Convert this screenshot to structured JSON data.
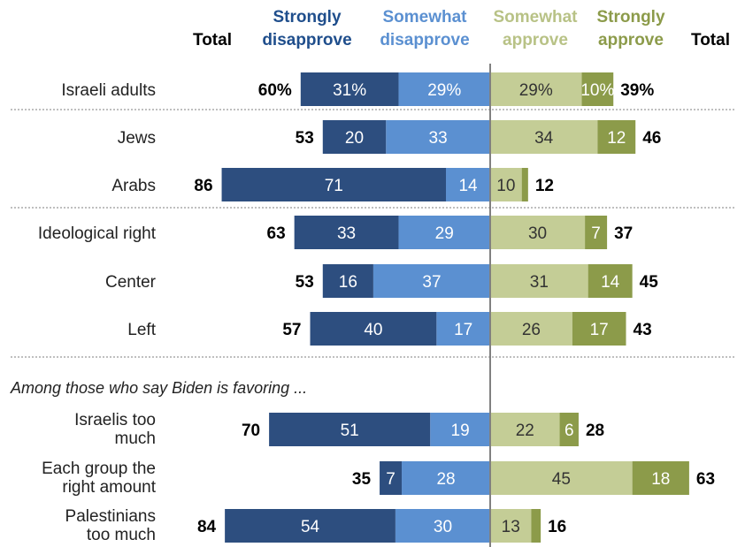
{
  "chart_data": {
    "type": "bar",
    "orientation": "horizontal-diverging",
    "headers": {
      "total_left": "Total",
      "strongly_disapprove": [
        "Strongly",
        "disapprove"
      ],
      "somewhat_disapprove": [
        "Somewhat",
        "disapprove"
      ],
      "somewhat_approve": [
        "Somewhat",
        "approve"
      ],
      "strongly_approve": [
        "Strongly",
        "approve"
      ],
      "total_right": "Total"
    },
    "colors": {
      "strongly_disapprove": "#2d4e7f",
      "somewhat_disapprove": "#5b90d1",
      "somewhat_approve": "#c4cd96",
      "strongly_approve": "#8c9b4a",
      "hdr_strongly_disapprove": "#1f4e8c",
      "hdr_somewhat_disapprove": "#5b90d1",
      "hdr_somewhat_approve": "#b8c286",
      "hdr_strongly_approve": "#8c9b4a"
    },
    "section_label": "Among those who say Biden is favoring ...",
    "rows": [
      {
        "label": [
          "Israeli adults"
        ],
        "strongly_disapprove": 31,
        "somewhat_disapprove": 29,
        "somewhat_approve": 29,
        "strongly_approve": 10,
        "total_disapprove": 60,
        "total_approve": 39,
        "labels": {
          "strongly_disapprove": "31%",
          "somewhat_disapprove": "29%",
          "somewhat_approve": "29%",
          "strongly_approve": "10%",
          "total_disapprove": "60%",
          "total_approve": "39%"
        }
      },
      {
        "label": [
          "Jews"
        ],
        "strongly_disapprove": 20,
        "somewhat_disapprove": 33,
        "somewhat_approve": 34,
        "strongly_approve": 12,
        "total_disapprove": 53,
        "total_approve": 46,
        "labels": {
          "strongly_disapprove": "20",
          "somewhat_disapprove": "33",
          "somewhat_approve": "34",
          "strongly_approve": "12",
          "total_disapprove": "53",
          "total_approve": "46"
        }
      },
      {
        "label": [
          "Arabs"
        ],
        "strongly_disapprove": 71,
        "somewhat_disapprove": 14,
        "somewhat_approve": 10,
        "strongly_approve": 2,
        "total_disapprove": 86,
        "total_approve": 12,
        "labels": {
          "strongly_disapprove": "71",
          "somewhat_disapprove": "14",
          "somewhat_approve": "10",
          "strongly_approve": "",
          "total_disapprove": "86",
          "total_approve": "12"
        }
      },
      {
        "label": [
          "Ideological right"
        ],
        "strongly_disapprove": 33,
        "somewhat_disapprove": 29,
        "somewhat_approve": 30,
        "strongly_approve": 7,
        "total_disapprove": 63,
        "total_approve": 37,
        "labels": {
          "strongly_disapprove": "33",
          "somewhat_disapprove": "29",
          "somewhat_approve": "30",
          "strongly_approve": "7",
          "total_disapprove": "63",
          "total_approve": "37"
        }
      },
      {
        "label": [
          "Center"
        ],
        "strongly_disapprove": 16,
        "somewhat_disapprove": 37,
        "somewhat_approve": 31,
        "strongly_approve": 14,
        "total_disapprove": 53,
        "total_approve": 45,
        "labels": {
          "strongly_disapprove": "16",
          "somewhat_disapprove": "37",
          "somewhat_approve": "31",
          "strongly_approve": "14",
          "total_disapprove": "53",
          "total_approve": "45"
        }
      },
      {
        "label": [
          "Left"
        ],
        "strongly_disapprove": 40,
        "somewhat_disapprove": 17,
        "somewhat_approve": 26,
        "strongly_approve": 17,
        "total_disapprove": 57,
        "total_approve": 43,
        "labels": {
          "strongly_disapprove": "40",
          "somewhat_disapprove": "17",
          "somewhat_approve": "26",
          "strongly_approve": "17",
          "total_disapprove": "57",
          "total_approve": "43"
        }
      },
      {
        "label": [
          "Israelis too",
          "much"
        ],
        "strongly_disapprove": 51,
        "somewhat_disapprove": 19,
        "somewhat_approve": 22,
        "strongly_approve": 6,
        "total_disapprove": 70,
        "total_approve": 28,
        "labels": {
          "strongly_disapprove": "51",
          "somewhat_disapprove": "19",
          "somewhat_approve": "22",
          "strongly_approve": "6",
          "total_disapprove": "70",
          "total_approve": "28"
        }
      },
      {
        "label": [
          "Each group the",
          "right amount"
        ],
        "strongly_disapprove": 7,
        "somewhat_disapprove": 28,
        "somewhat_approve": 45,
        "strongly_approve": 18,
        "total_disapprove": 35,
        "total_approve": 63,
        "labels": {
          "strongly_disapprove": "7",
          "somewhat_disapprove": "28",
          "somewhat_approve": "45",
          "strongly_approve": "18",
          "total_disapprove": "35",
          "total_approve": "63"
        }
      },
      {
        "label": [
          "Palestinians",
          "too much"
        ],
        "strongly_disapprove": 54,
        "somewhat_disapprove": 30,
        "somewhat_approve": 13,
        "strongly_approve": 3,
        "total_disapprove": 84,
        "total_approve": 16,
        "labels": {
          "strongly_disapprove": "54",
          "somewhat_disapprove": "30",
          "somewhat_approve": "13",
          "strongly_approve": "",
          "total_disapprove": "84",
          "total_approve": "16"
        }
      }
    ]
  }
}
